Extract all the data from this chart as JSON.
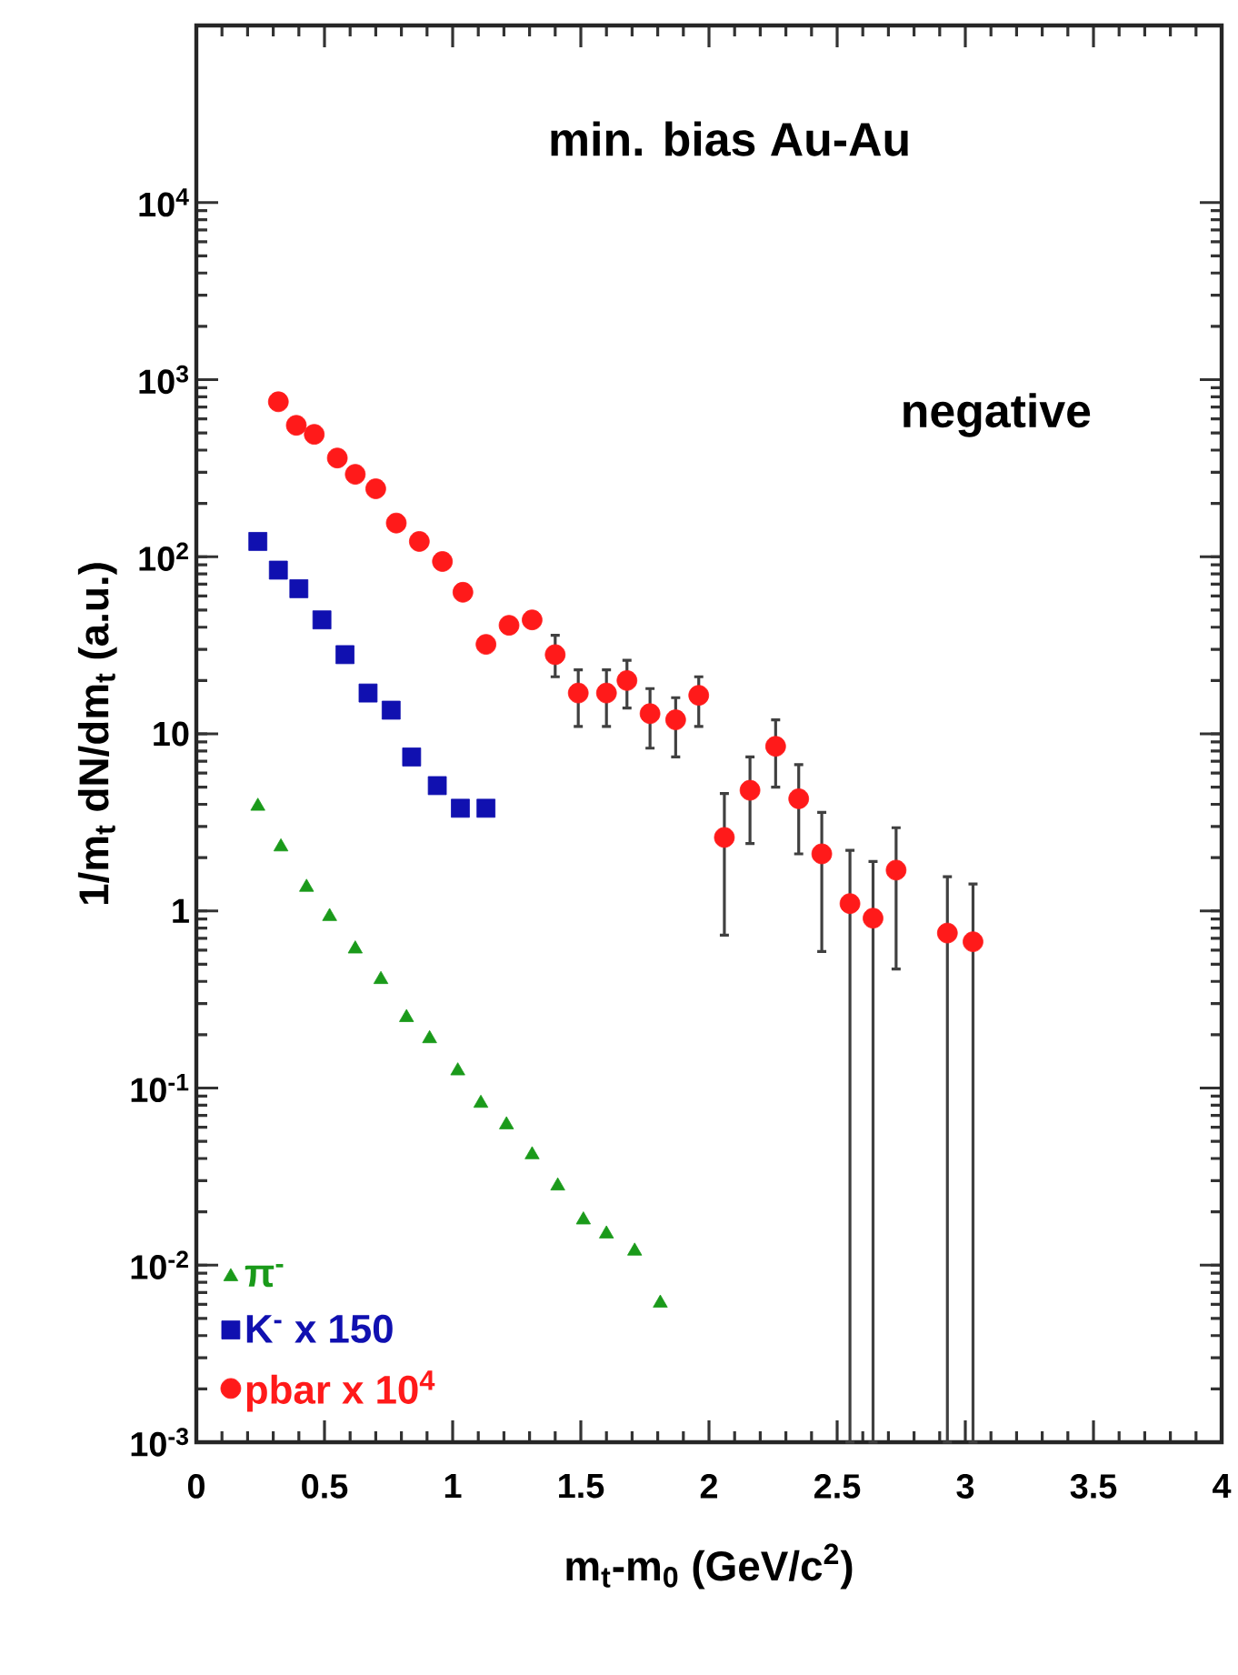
{
  "chart_data": {
    "type": "scatter",
    "xlabel": "m$_{t}$-m$_{0}$ (GeV/c$^{2}$)",
    "ylabel": "1/m$_{t}$ dN/dm$_{t}$ (a.u.)",
    "annotations": [
      "min. bias Au-Au",
      "negative"
    ],
    "log": "y",
    "xlim": [
      0,
      4
    ],
    "xticks": [
      0,
      0.5,
      1,
      1.5,
      2,
      2.5,
      3,
      3.5,
      4
    ],
    "ylim": [
      0.001,
      100000
    ],
    "yticks": [
      {
        "value": 0.001,
        "label": "10$^{-3}$"
      },
      {
        "value": 0.01,
        "label": "10$^{-2}$"
      },
      {
        "value": 0.1,
        "label": "10$^{-1}$"
      },
      1,
      10,
      {
        "value": 100,
        "label": "10$^{2}$"
      },
      {
        "value": 1000,
        "label": "10$^{3}$"
      },
      {
        "value": 10000,
        "label": "10$^{4}$"
      }
    ],
    "legend": "bottom left",
    "grid": false,
    "series": [
      {
        "name": "π$^{-}$",
        "color": "#1a9a1a",
        "marker": "triangle",
        "x": [
          0.24,
          0.33,
          0.43,
          0.52,
          0.62,
          0.72,
          0.82,
          0.91,
          1.02,
          1.11,
          1.21,
          1.31,
          1.41,
          1.51,
          1.6,
          1.71,
          1.81
        ],
        "values": [
          3.9,
          2.3,
          1.36,
          0.93,
          0.61,
          0.41,
          0.25,
          0.19,
          0.125,
          0.082,
          0.062,
          0.042,
          0.028,
          0.018,
          0.015,
          0.012,
          0.0061
        ]
      },
      {
        "name": "K$^{-}$ x 150",
        "color": "#1010b0",
        "marker": "square",
        "x": [
          0.24,
          0.32,
          0.4,
          0.49,
          0.58,
          0.67,
          0.76,
          0.84,
          0.94,
          1.03,
          1.13
        ],
        "values": [
          122,
          84,
          66,
          44,
          28,
          17,
          13.6,
          7.4,
          5.1,
          3.8,
          3.8
        ]
      },
      {
        "name": "pbar x 10$^{4}$",
        "color": "#ff1a1a",
        "marker": "circle",
        "x": [
          0.32,
          0.39,
          0.46,
          0.55,
          0.62,
          0.7,
          0.78,
          0.87,
          0.96,
          1.04,
          1.13,
          1.22,
          1.31,
          1.4,
          1.49,
          1.6,
          1.68,
          1.77,
          1.87,
          1.96,
          2.06,
          2.16,
          2.26,
          2.35,
          2.44,
          2.55,
          2.64,
          2.73,
          2.93,
          3.03
        ],
        "values": [
          750,
          552,
          491,
          361,
          292,
          242,
          155,
          122,
          94,
          63,
          32,
          41,
          44,
          28,
          17,
          17,
          20,
          13,
          12,
          16.5,
          2.6,
          4.8,
          8.5,
          4.3,
          2.1,
          1.1,
          0.91,
          1.7,
          0.75,
          0.67
        ],
        "errors": [
          null,
          null,
          null,
          null,
          null,
          null,
          null,
          null,
          null,
          null,
          null,
          null,
          null,
          [
            21,
            36
          ],
          [
            11,
            23
          ],
          [
            11,
            23
          ],
          [
            14,
            26
          ],
          [
            8.3,
            18
          ],
          [
            7.4,
            16
          ],
          [
            11,
            21
          ],
          [
            0.73,
            4.6
          ],
          [
            2.4,
            7.4
          ],
          [
            5.0,
            12
          ],
          [
            2.1,
            6.7
          ],
          [
            0.59,
            3.6
          ],
          [
            0.001,
            2.2
          ],
          [
            0.001,
            1.9
          ],
          [
            0.47,
            2.95
          ],
          [
            0.001,
            1.56
          ],
          [
            0.001,
            1.42
          ]
        ]
      }
    ]
  }
}
